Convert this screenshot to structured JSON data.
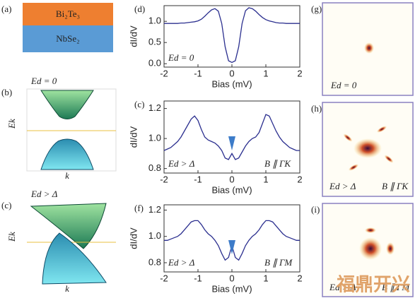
{
  "chart_data": [
    {
      "type": "line",
      "label": "(d)",
      "xlabel": "Bias (mV)",
      "ylabel": "dI/dV",
      "color": "#2b2f8f",
      "annotations": [
        "Ed = 0"
      ],
      "x": [
        -2,
        -1.9,
        -1.8,
        -1.7,
        -1.6,
        -1.5,
        -1.4,
        -1.3,
        -1.2,
        -1.1,
        -1,
        -0.9,
        -0.8,
        -0.7,
        -0.6,
        -0.5,
        -0.4,
        -0.3,
        -0.2,
        -0.1,
        0,
        0.1,
        0.2,
        0.3,
        0.4,
        0.5,
        0.6,
        0.7,
        0.8,
        0.9,
        1,
        1.1,
        1.2,
        1.3,
        1.4,
        1.5,
        1.6,
        1.7,
        1.8,
        1.9,
        2
      ],
      "values": [
        0.95,
        0.95,
        0.95,
        0.95,
        0.95,
        0.96,
        0.96,
        0.97,
        0.98,
        0.99,
        1.01,
        1.05,
        1.12,
        1.2,
        1.27,
        1.3,
        1.24,
        0.95,
        0.4,
        0.07,
        0.03,
        0.07,
        0.4,
        0.95,
        1.25,
        1.32,
        1.3,
        1.24,
        1.16,
        1.09,
        1.04,
        1.01,
        0.99,
        0.97,
        0.96,
        0.96,
        0.95,
        0.95,
        0.95,
        0.95,
        0.95
      ],
      "xlim": [
        -2,
        2
      ],
      "xticks": [
        -2,
        -1,
        0,
        1,
        2
      ],
      "ylim": [
        -0.08,
        1.37
      ],
      "yticks": [
        {
          "value": 0,
          "label": "0.0"
        },
        0.5,
        {
          "value": 1,
          "label": "1.0"
        }
      ]
    },
    {
      "type": "line",
      "label": "(c)",
      "xlabel": "Bias (mV)",
      "ylabel": "dI/dV",
      "color": "#2b2f8f",
      "annotations": [
        "Ed > Δ",
        "B ∥ ΓK"
      ],
      "x": [
        -2,
        -1.9,
        -1.8,
        -1.7,
        -1.6,
        -1.5,
        -1.4,
        -1.3,
        -1.2,
        -1.1,
        -1,
        -0.9,
        -0.8,
        -0.7,
        -0.6,
        -0.5,
        -0.4,
        -0.3,
        -0.2,
        -0.1,
        0,
        0.1,
        0.2,
        0.3,
        0.4,
        0.5,
        0.6,
        0.7,
        0.8,
        0.9,
        1,
        1.1,
        1.2,
        1.3,
        1.4,
        1.5,
        1.6,
        1.7,
        1.8,
        1.9,
        2
      ],
      "values": [
        0.92,
        0.93,
        0.94,
        0.96,
        0.98,
        1.01,
        1.05,
        1.09,
        1.13,
        1.15,
        1.12,
        1.06,
        1.01,
        0.99,
        0.98,
        0.97,
        0.95,
        0.92,
        0.87,
        0.86,
        0.9,
        0.86,
        0.87,
        0.91,
        0.95,
        0.98,
        1,
        1.01,
        1.04,
        1.1,
        1.16,
        1.15,
        1.1,
        1.05,
        1.01,
        0.98,
        0.96,
        0.94,
        0.93,
        0.92,
        0.92
      ],
      "xlim": [
        -2,
        2
      ],
      "xticks": [
        -2,
        -1,
        0,
        1,
        2
      ],
      "ylim": [
        0.77,
        1.25
      ],
      "yticks": [
        0.8,
        {
          "value": 1,
          "label": "1.0"
        },
        1.2
      ]
    },
    {
      "type": "line",
      "label": "(f)",
      "xlabel": "Bias (mV)",
      "ylabel": "dI/dV",
      "color": "#2b2f8f",
      "annotations": [
        "Ed > Δ",
        "B ∥ ΓM"
      ],
      "x": [
        -2,
        -1.9,
        -1.8,
        -1.7,
        -1.6,
        -1.5,
        -1.4,
        -1.3,
        -1.2,
        -1.1,
        -1,
        -0.9,
        -0.8,
        -0.7,
        -0.6,
        -0.5,
        -0.4,
        -0.3,
        -0.2,
        -0.1,
        0,
        0.1,
        0.2,
        0.3,
        0.4,
        0.5,
        0.6,
        0.7,
        0.8,
        0.9,
        1,
        1.1,
        1.2,
        1.3,
        1.4,
        1.5,
        1.6,
        1.7,
        1.8,
        1.9,
        2
      ],
      "values": [
        0.97,
        0.97,
        0.98,
        0.99,
        1,
        1.02,
        1.05,
        1.08,
        1.11,
        1.12,
        1.12,
        1.09,
        1.05,
        1.02,
        1,
        0.97,
        0.93,
        0.87,
        0.82,
        0.84,
        0.93,
        0.84,
        0.82,
        0.87,
        0.93,
        0.97,
        1,
        1.02,
        1.05,
        1.09,
        1.12,
        1.12,
        1.11,
        1.08,
        1.05,
        1.02,
        1,
        0.99,
        0.98,
        0.97,
        0.97
      ],
      "xlim": [
        -2,
        2
      ],
      "xticks": [
        -2,
        -1,
        0,
        1,
        2
      ],
      "ylim": [
        0.73,
        1.24
      ],
      "yticks": [
        0.8,
        {
          "value": 1,
          "label": "1.0"
        },
        1.2
      ]
    }
  ],
  "panels": {
    "a": {
      "label": "(a)",
      "layers": [
        "Bi₂Te₃",
        "NbSe₂"
      ]
    },
    "b": {
      "label": "(b)",
      "title": "Ed = 0",
      "ylabel": "Ek",
      "xlabel": "k"
    },
    "c": {
      "label": "(c)",
      "title": "Ed > Δ",
      "ylabel": "Ek",
      "xlabel": "k"
    },
    "g": {
      "label": "(g)",
      "annotations": [
        "Ed = 0"
      ]
    },
    "h": {
      "label": "(h)",
      "annotations": [
        "Ed > Δ",
        "B ∥ ΓK"
      ]
    },
    "i": {
      "label": "(i)",
      "annotations": [
        "Ed > Δ",
        "B ∥ ΓM"
      ]
    }
  },
  "watermark": "福鼎开兴"
}
